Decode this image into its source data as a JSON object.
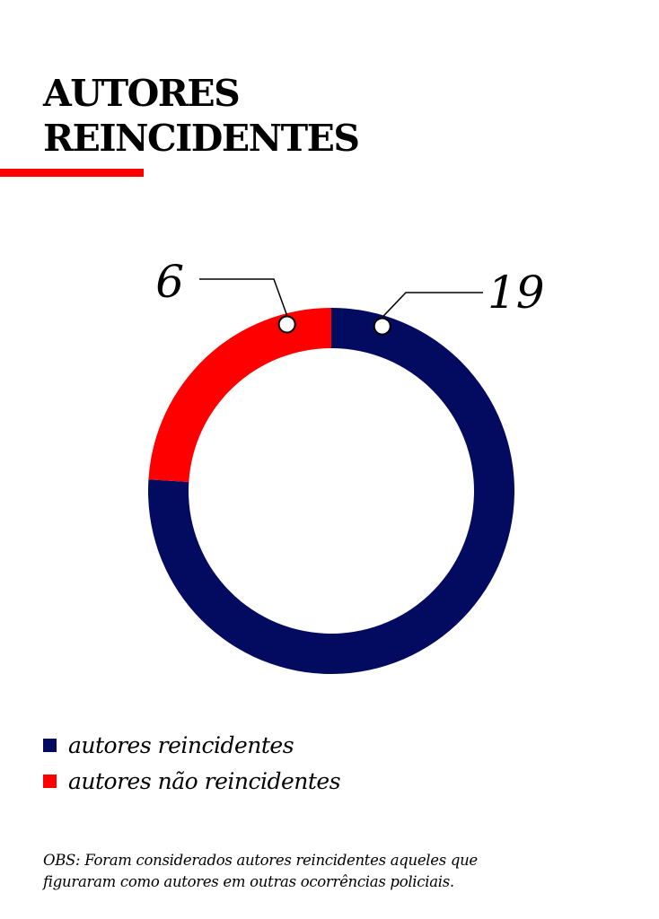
{
  "title_lines": [
    "AUTORES",
    "REINCIDENTES"
  ],
  "colors": {
    "accent": "#ff0000",
    "series_reincidentes": "#020b5f",
    "series_nao_reincidentes": "#ff0000"
  },
  "chart_data": {
    "type": "pie",
    "variant": "donut",
    "title": "AUTORES REINCIDENTES",
    "series": [
      {
        "name": "autores reincidentes",
        "value": 19,
        "color": "#020b5f"
      },
      {
        "name": "autores não reincidentes",
        "value": 6,
        "color": "#ff0000"
      }
    ],
    "data_labels": [
      "19",
      "6"
    ],
    "legend_position": "bottom-left"
  },
  "legend": [
    {
      "label": "autores reincidentes",
      "color": "#020b5f"
    },
    {
      "label": "autores não reincidentes",
      "color": "#ff0000"
    }
  ],
  "note_lines": [
    "OBS: Foram considerados autores reincidentes aqueles que",
    "figuraram como autores em outras ocorrências policiais."
  ]
}
